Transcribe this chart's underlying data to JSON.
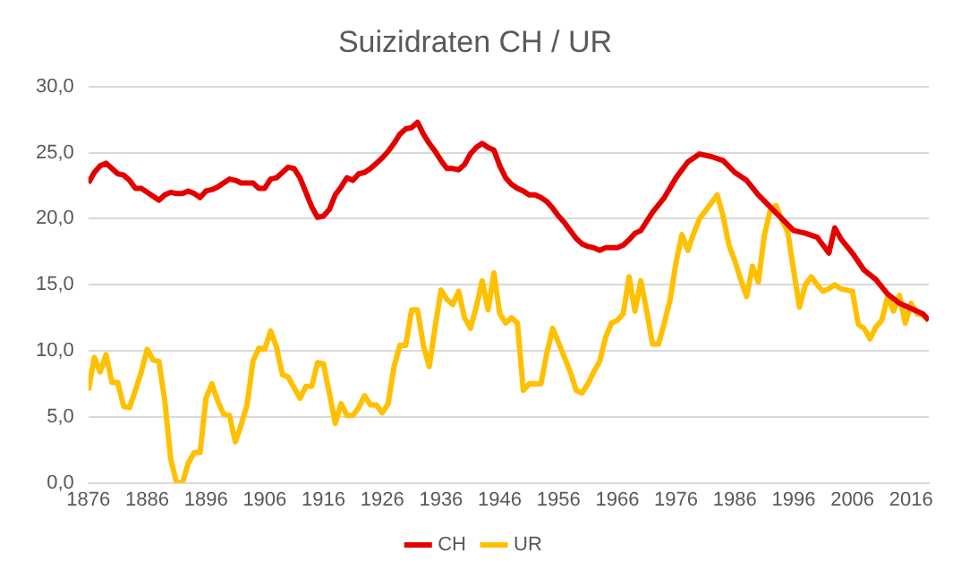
{
  "chart_data": {
    "type": "line",
    "title": "Suizidraten CH / UR",
    "x": [
      1876,
      1877,
      1878,
      1879,
      1880,
      1881,
      1882,
      1883,
      1884,
      1885,
      1886,
      1887,
      1888,
      1889,
      1890,
      1891,
      1892,
      1893,
      1894,
      1895,
      1896,
      1897,
      1898,
      1899,
      1900,
      1901,
      1902,
      1903,
      1904,
      1905,
      1906,
      1907,
      1908,
      1909,
      1910,
      1911,
      1912,
      1913,
      1914,
      1915,
      1916,
      1917,
      1918,
      1919,
      1920,
      1921,
      1922,
      1923,
      1924,
      1925,
      1926,
      1927,
      1928,
      1929,
      1930,
      1931,
      1932,
      1933,
      1934,
      1935,
      1936,
      1937,
      1938,
      1939,
      1940,
      1941,
      1942,
      1943,
      1944,
      1945,
      1946,
      1947,
      1948,
      1949,
      1950,
      1951,
      1952,
      1953,
      1954,
      1955,
      1956,
      1957,
      1958,
      1959,
      1960,
      1961,
      1962,
      1963,
      1964,
      1965,
      1966,
      1967,
      1968,
      1969,
      1970,
      1971,
      1972,
      1973,
      1974,
      1975,
      1976,
      1977,
      1978,
      1979,
      1980,
      1981,
      1982,
      1983,
      1984,
      1985,
      1986,
      1987,
      1988,
      1989,
      1990,
      1991,
      1992,
      1993,
      1994,
      1995,
      1996,
      1997,
      1998,
      1999,
      2000,
      2001,
      2002,
      2003,
      2004,
      2005,
      2006,
      2007,
      2008,
      2009,
      2010,
      2011,
      2012,
      2013,
      2014,
      2015,
      2016,
      2017,
      2018,
      2019
    ],
    "series": [
      {
        "name": "CH",
        "color": "#e50000",
        "x": [
          1876,
          1877,
          1878,
          1879,
          1880,
          1881,
          1882,
          1883,
          1884,
          1885,
          1886,
          1887,
          1888,
          1889,
          1890,
          1891,
          1892,
          1893,
          1894,
          1895,
          1896,
          1897,
          1898,
          1899,
          1900,
          1901,
          1902,
          1903,
          1904,
          1905,
          1906,
          1907,
          1908,
          1909,
          1910,
          1911,
          1912,
          1913,
          1914,
          1915,
          1916,
          1917,
          1918,
          1919,
          1920,
          1921,
          1922,
          1923,
          1924,
          1925,
          1926,
          1927,
          1928,
          1929,
          1930,
          1931,
          1932,
          1933,
          1934,
          1935,
          1936,
          1937,
          1938,
          1939,
          1940,
          1941,
          1942,
          1943,
          1944,
          1945,
          1946,
          1947,
          1948,
          1949,
          1950,
          1951,
          1952,
          1953,
          1954,
          1955,
          1956,
          1957,
          1958,
          1959,
          1960,
          1961,
          1962,
          1963,
          1964,
          1965,
          1966,
          1967,
          1968,
          1969,
          1970,
          1972,
          1974,
          1976,
          1978,
          1980,
          1982,
          1984,
          1986,
          1988,
          1990,
          1992,
          1994,
          1996,
          1998,
          2000,
          2001,
          2002,
          2003,
          2004,
          2006,
          2008,
          2010,
          2012,
          2014,
          2016,
          2018,
          2019
        ],
        "values": [
          22.7,
          23.5,
          24.0,
          24.2,
          23.8,
          23.4,
          23.3,
          22.9,
          22.3,
          22.3,
          22.0,
          21.7,
          21.4,
          21.8,
          22.0,
          21.9,
          21.9,
          22.1,
          21.9,
          21.6,
          22.1,
          22.2,
          22.4,
          22.7,
          23.0,
          22.9,
          22.7,
          22.7,
          22.7,
          22.3,
          22.3,
          23.0,
          23.1,
          23.5,
          23.9,
          23.8,
          23.1,
          22.0,
          20.9,
          20.1,
          20.2,
          20.7,
          21.8,
          22.4,
          23.1,
          22.9,
          23.4,
          23.5,
          23.8,
          24.2,
          24.6,
          25.1,
          25.7,
          26.4,
          26.8,
          26.9,
          27.3,
          26.4,
          25.7,
          25.1,
          24.4,
          23.8,
          23.8,
          23.7,
          24.1,
          24.9,
          25.4,
          25.7,
          25.4,
          25.2,
          24.0,
          23.1,
          22.6,
          22.3,
          22.1,
          21.8,
          21.8,
          21.6,
          21.3,
          20.8,
          20.2,
          19.7,
          19.1,
          18.5,
          18.1,
          17.9,
          17.8,
          17.6,
          17.8,
          17.8,
          17.8,
          18.0,
          18.4,
          18.9,
          19.1,
          20.5,
          21.6,
          23.1,
          24.3,
          24.9,
          24.7,
          24.4,
          23.5,
          22.9,
          21.8,
          20.9,
          20.0,
          19.1,
          18.9,
          18.6,
          18.0,
          17.4,
          19.3,
          18.5,
          17.4,
          16.1,
          15.4,
          14.3,
          13.6,
          13.2,
          12.8,
          12.3
        ]
      },
      {
        "name": "UR",
        "color": "#ffc000",
        "values": [
          7.0,
          9.5,
          8.4,
          9.7,
          7.6,
          7.6,
          5.8,
          5.7,
          7.0,
          8.4,
          10.1,
          9.3,
          9.2,
          6.2,
          1.8,
          0.0,
          0.0,
          1.5,
          2.3,
          2.3,
          6.4,
          7.5,
          6.2,
          5.2,
          5.1,
          3.1,
          4.4,
          5.9,
          9.2,
          10.2,
          10.1,
          11.5,
          10.3,
          8.2,
          8.0,
          7.2,
          6.4,
          7.3,
          7.3,
          9.1,
          9.0,
          6.8,
          4.5,
          6.0,
          5.1,
          5.1,
          5.7,
          6.6,
          5.9,
          5.9,
          5.3,
          6.0,
          8.8,
          10.4,
          10.4,
          13.1,
          13.1,
          10.4,
          8.8,
          11.8,
          14.6,
          13.9,
          13.5,
          14.5,
          12.5,
          11.7,
          13.3,
          15.3,
          13.1,
          15.9,
          12.8,
          12.1,
          12.5,
          12.1,
          7.0,
          7.5,
          7.5,
          7.5,
          9.8,
          11.7,
          10.6,
          9.5,
          8.4,
          7.0,
          6.8,
          7.5,
          8.4,
          9.2,
          11.0,
          12.1,
          12.3,
          12.8,
          15.6,
          13.0,
          15.3,
          13.0,
          10.5,
          10.5,
          12.1,
          13.9,
          16.7,
          18.8,
          17.6,
          18.9,
          20.0,
          20.6,
          21.2,
          21.8,
          20.2,
          18.0,
          16.8,
          15.4,
          14.1,
          16.4,
          15.2,
          18.7,
          20.6,
          21.0,
          19.9,
          19.0,
          16.1,
          13.3,
          15.0,
          15.6,
          15.0,
          14.5,
          14.7,
          15.0,
          14.7,
          14.6,
          14.5,
          12.0,
          11.7,
          10.9,
          11.8,
          12.3,
          14.1,
          13.0,
          14.2,
          12.1,
          13.6,
          12.8,
          12.7,
          12.3
        ]
      }
    ],
    "xlim": [
      1876,
      2019
    ],
    "xticks": [
      1876,
      1886,
      1896,
      1906,
      1916,
      1926,
      1936,
      1946,
      1956,
      1966,
      1976,
      1986,
      1996,
      2006,
      2016
    ],
    "ylim": [
      0,
      30
    ],
    "yticks": [
      {
        "value": 0,
        "label": "0,0"
      },
      {
        "value": 5,
        "label": "5,0"
      },
      {
        "value": 10,
        "label": "10,0"
      },
      {
        "value": 15,
        "label": "15,0"
      },
      {
        "value": 20,
        "label": "20,0"
      },
      {
        "value": 25,
        "label": "25,0"
      },
      {
        "value": 30,
        "label": "30,0"
      }
    ],
    "grid": "y",
    "legend": "bottom",
    "marker": "none",
    "line_style": "solid"
  }
}
